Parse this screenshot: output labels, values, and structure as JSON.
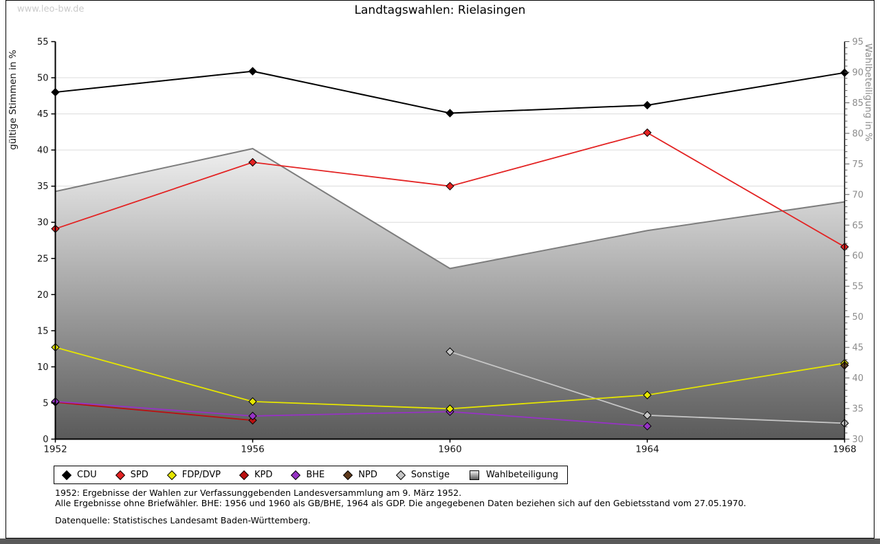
{
  "watermark": "www.leo-bw.de",
  "header": {
    "title": "Landtagswahlen: Rielasingen"
  },
  "footer": {
    "note1": "1952: Ergebnisse der Wahlen zur Verfassunggebenden Landesversammlung am 9. März 1952.",
    "note2": "Alle Ergebnisse ohne Briefwähler. BHE: 1956 und 1960 als GB/BHE, 1964 als GDP. Die angegebenen Daten beziehen sich auf den Gebietsstand vom 27.05.1970.",
    "source": "Datenquelle: Statistisches Landesamt Baden-Württemberg."
  },
  "chart_data": {
    "type": "line",
    "title": "Landtagswahlen: Rielasingen",
    "x": [
      "1952",
      "1956",
      "1960",
      "1964",
      "1968"
    ],
    "left_axis": {
      "label": "gültige Stimmen in %",
      "min": 0,
      "max": 55,
      "step": 5
    },
    "right_axis": {
      "label": "Wahlbeteiligung in %",
      "min": 30,
      "max": 95,
      "step": 5
    },
    "grid": true,
    "legend_position": "bottom",
    "series": [
      {
        "name": "CDU",
        "axis": "left",
        "kind": "line",
        "z": 6,
        "color": "#000000",
        "marker": "diamond",
        "values": [
          48.0,
          50.9,
          45.1,
          46.2,
          50.7
        ]
      },
      {
        "name": "SPD",
        "axis": "left",
        "kind": "line",
        "z": 5,
        "color": "#e32222",
        "marker": "diamond",
        "values": [
          29.1,
          38.3,
          35.0,
          42.4,
          26.6
        ]
      },
      {
        "name": "FDP/DVP",
        "axis": "left",
        "kind": "line",
        "z": 4,
        "color": "#e6e600",
        "marker": "diamond",
        "values": [
          12.7,
          5.2,
          4.2,
          6.1,
          10.5
        ]
      },
      {
        "name": "KPD",
        "axis": "left",
        "kind": "line",
        "z": 2,
        "color": "#bb1010",
        "marker": "diamond",
        "values": [
          5.1,
          2.6,
          null,
          null,
          null
        ]
      },
      {
        "name": "BHE",
        "axis": "left",
        "kind": "line",
        "z": 3,
        "color": "#9633c4",
        "marker": "diamond",
        "values": [
          5.2,
          3.2,
          3.8,
          1.8,
          null
        ]
      },
      {
        "name": "NPD",
        "axis": "left",
        "kind": "line",
        "z": 7,
        "color": "#5f3a1c",
        "marker": "diamond",
        "values": [
          null,
          null,
          null,
          null,
          10.2
        ]
      },
      {
        "name": "Sonstige",
        "axis": "left",
        "kind": "line",
        "z": 1,
        "color": "#c6c6c6",
        "marker": "diamond",
        "values": [
          null,
          null,
          12.1,
          3.3,
          2.2
        ]
      },
      {
        "name": "Wahlbeteiligung",
        "axis": "right",
        "kind": "area",
        "z": 0,
        "color": "#7d7d7d",
        "marker": "square",
        "color_top": "#efefef",
        "color_bottom": "#5a5a5a",
        "values": [
          70.5,
          77.5,
          57.9,
          64.1,
          68.8
        ]
      }
    ],
    "style": {
      "gridline_color": "#dcdcdc",
      "axis_color": "#000000",
      "right_label_color": "#8c8c8c",
      "left_label_color": "#141414"
    }
  }
}
